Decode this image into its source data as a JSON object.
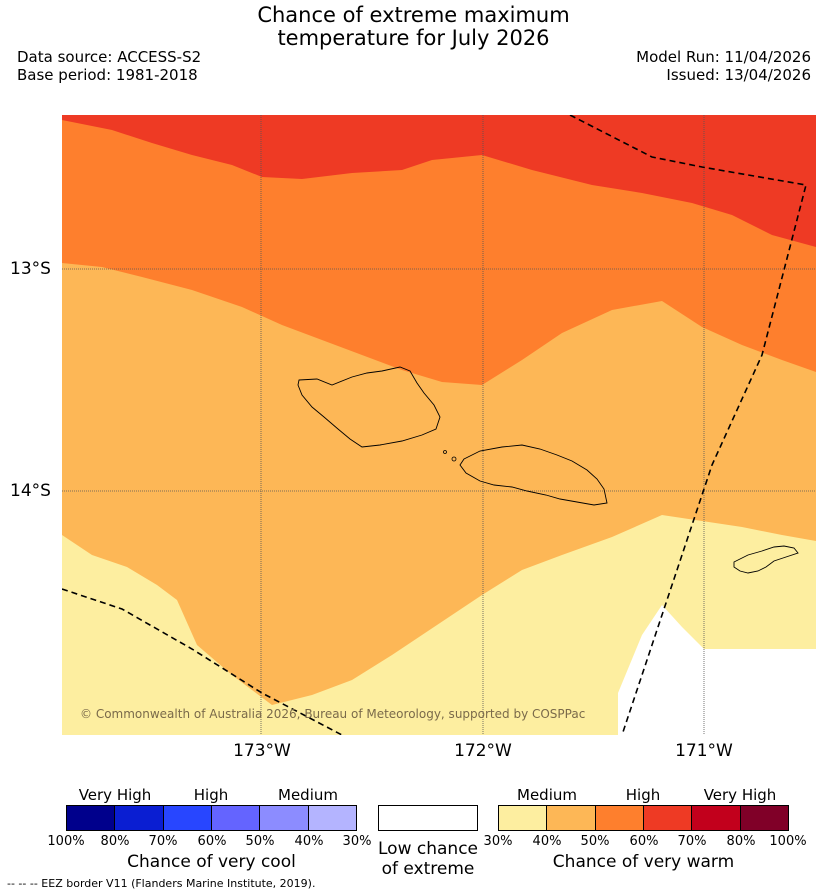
{
  "header": {
    "title_line1": "Chance of extreme maximum",
    "title_line2": "temperature for July 2026",
    "data_source": "Data source: ACCESS-S2",
    "base_period": "Base period: 1981-2018",
    "model_run": "Model Run: 11/04/2026",
    "issued": "Issued: 13/04/2026"
  },
  "map": {
    "lat_labels": [
      "13°S",
      "14°S"
    ],
    "lon_labels": [
      "173°W",
      "172°W",
      "171°W"
    ],
    "copyright": "© Commonwealth of Australia 2026, Bureau of Meteorology, supported by COSPPac",
    "zone_colors": {
      "red": "#ee3a24",
      "orange": "#fe7f2d",
      "light_orange": "#fdb756",
      "yellow": "#fdeea0",
      "white": "#ffffff"
    }
  },
  "legend": {
    "cool": {
      "categories": [
        "Very High",
        "High",
        "Medium"
      ],
      "ticks": [
        "100%",
        "80%",
        "70%",
        "60%",
        "50%",
        "40%",
        "30%"
      ],
      "colors": [
        "#00008c",
        "#0a1ed2",
        "#2846ff",
        "#6464ff",
        "#8c8cff",
        "#b4b4ff"
      ],
      "caption": "Chance of very cool"
    },
    "low": {
      "caption_line1": "Low chance",
      "caption_line2": "of extreme"
    },
    "warm": {
      "categories": [
        "Medium",
        "High",
        "Very High"
      ],
      "ticks": [
        "30%",
        "40%",
        "50%",
        "60%",
        "70%",
        "80%",
        "100%"
      ],
      "colors": [
        "#fdeea0",
        "#fdb756",
        "#fe7f2d",
        "#ee3a24",
        "#c2001c",
        "#800028"
      ],
      "caption": "Chance of very warm"
    }
  },
  "footnote": "--  --  -- EEZ border V11 (Flanders Marine Institute, 2019)."
}
